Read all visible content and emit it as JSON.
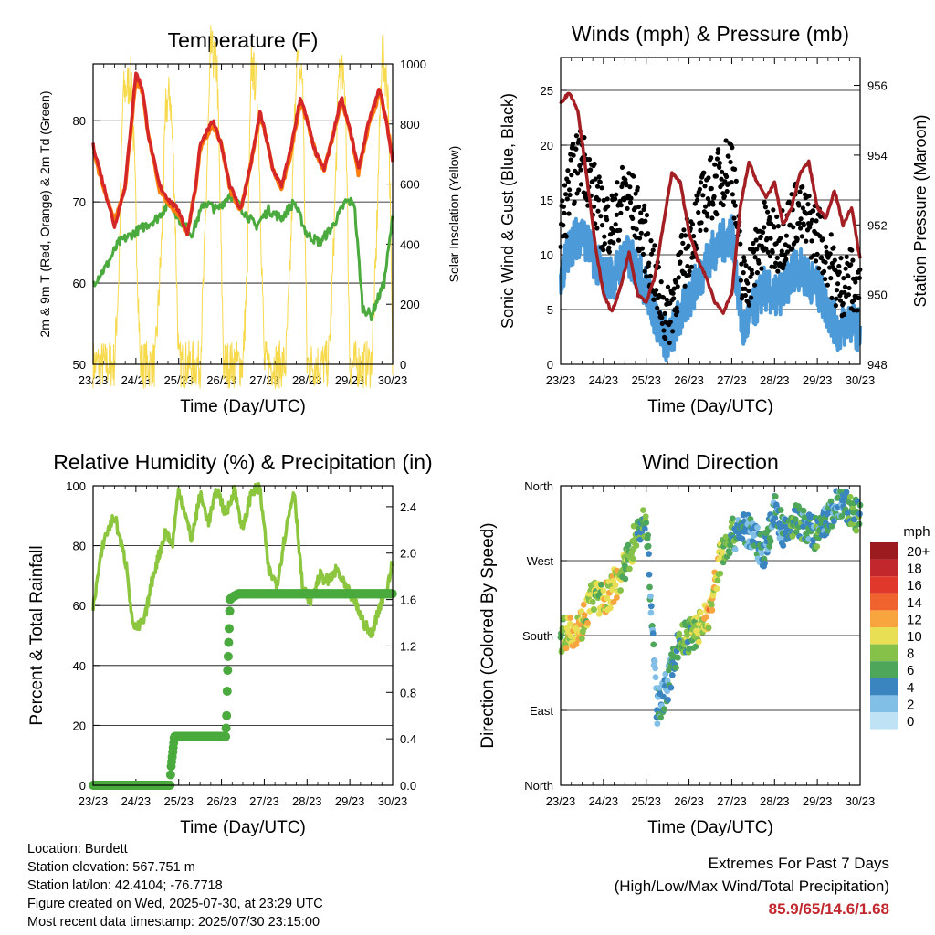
{
  "x_ticks": [
    "23/23",
    "24/23",
    "25/23",
    "26/23",
    "27/23",
    "28/23",
    "29/23",
    "30/23"
  ],
  "charts": {
    "temperature": {
      "title": "Temperature (F)",
      "xlabel": "Time (Day/UTC)",
      "ylabel_left": "2m & 9m T (Red, Orange) & 2m Td (Green)",
      "ylabel_right": "Solar Insolation (Yellow)",
      "left_ticks": [
        "50",
        "60",
        "70",
        "80"
      ],
      "right_ticks": [
        "0",
        "200",
        "400",
        "600",
        "800",
        "1000"
      ]
    },
    "winds": {
      "title": "Winds (mph) & Pressure (mb)",
      "xlabel": "Time (Day/UTC)",
      "ylabel_left": "Sonic Wind & Gust (Blue, Black)",
      "ylabel_right": "Station Pressure (Maroon)",
      "left_ticks": [
        "0",
        "5",
        "10",
        "15",
        "20",
        "25"
      ],
      "right_ticks": [
        "948",
        "950",
        "952",
        "954",
        "956"
      ]
    },
    "humidity": {
      "title": "Relative Humidity (%) & Precipitation (in)",
      "xlabel": "Time (Day/UTC)",
      "ylabel_left": "Percent & Total Rainfall",
      "left_ticks": [
        "0",
        "20",
        "40",
        "60",
        "80",
        "100"
      ],
      "right_ticks": [
        "0.0",
        "0.4",
        "0.8",
        "1.2",
        "1.6",
        "2.0",
        "2.4"
      ]
    },
    "direction": {
      "title": "Wind Direction",
      "xlabel": "Time (Day/UTC)",
      "ylabel_left": "Direction (Colored By Speed)",
      "left_ticks": [
        "North",
        "East",
        "South",
        "West",
        "North"
      ],
      "colorbar_title": "mph",
      "colorbar_labels": [
        "20+",
        "18",
        "16",
        "14",
        "12",
        "10",
        "8",
        "6",
        "4",
        "2",
        "0"
      ],
      "colorbar_colors": [
        "#9b1b1e",
        "#c1272d",
        "#e0392b",
        "#f0632f",
        "#f8a540",
        "#e8df54",
        "#86c24a",
        "#4ea65a",
        "#3a85c0",
        "#82bfe6",
        "#bfe3f5"
      ]
    }
  },
  "info": {
    "location": "Location: Burdett",
    "elevation": "Station elevation: 567.751 m",
    "latlon": "Station lat/lon: 42.4104; -76.7718",
    "created": "Figure created on Wed, 2025-07-30, at 23:29 UTC",
    "recent": "Most recent data timestamp: 2025/07/30 23:15:00"
  },
  "extremes": {
    "line1": "Extremes For Past 7 Days",
    "line2": "(High/Low/Max Wind/Total Precipitation)",
    "values": "85.9/65/14.6/1.68"
  },
  "chart_data": [
    {
      "type": "line",
      "title": "Temperature (F)",
      "xlabel": "Time (Day/UTC)",
      "ylabel": "2m & 9m T (Red, Orange) & 2m Td (Green)",
      "y2label": "Solar Insolation (Yellow)",
      "xlim": [
        0,
        7
      ],
      "ylim": [
        50,
        87
      ],
      "y2lim": [
        0,
        1000
      ],
      "series": [
        {
          "name": "2m T",
          "color": "#d62728",
          "axis": "left",
          "x": [
            0,
            0.25,
            0.5,
            0.75,
            1.0,
            1.15,
            1.3,
            1.55,
            1.8,
            2.0,
            2.2,
            2.4,
            2.5,
            2.8,
            3.0,
            3.2,
            3.45,
            3.7,
            3.9,
            4.0,
            4.2,
            4.4,
            4.6,
            4.85,
            5.0,
            5.2,
            5.4,
            5.6,
            5.8,
            6.0,
            6.2,
            6.45,
            6.7,
            6.85,
            7.0
          ],
          "y": [
            77,
            72,
            67,
            72,
            85.9,
            84,
            78,
            72,
            70,
            69,
            66,
            72,
            77,
            80,
            77,
            72,
            69,
            75,
            81,
            79,
            74,
            72,
            76,
            83,
            80,
            76,
            74,
            78,
            83,
            79,
            74,
            80,
            84,
            80,
            75
          ]
        },
        {
          "name": "9m T",
          "color": "#ff7f0e",
          "axis": "left",
          "x": [
            0,
            0.25,
            0.5,
            0.75,
            1.0,
            1.15,
            1.3,
            1.55,
            1.8,
            2.0,
            2.2,
            2.4,
            2.5,
            2.8,
            3.0,
            3.2,
            3.45,
            3.7,
            3.9,
            4.0,
            4.2,
            4.4,
            4.6,
            4.85,
            5.0,
            5.2,
            5.4,
            5.6,
            5.8,
            6.0,
            6.2,
            6.45,
            6.7,
            6.85,
            7.0
          ],
          "y": [
            76.5,
            71.5,
            67.5,
            72,
            85,
            83.5,
            78,
            71.5,
            69.5,
            68.5,
            66,
            72,
            76.5,
            79.5,
            77,
            71.5,
            69,
            75,
            80.5,
            79,
            74,
            71.5,
            75.5,
            82.5,
            80,
            76,
            74,
            78,
            82.5,
            79,
            73.5,
            79.5,
            83.5,
            80,
            75.5
          ]
        },
        {
          "name": "2m Td",
          "color": "#4aaa3d",
          "axis": "left",
          "x": [
            0,
            0.3,
            0.6,
            0.9,
            1.2,
            1.5,
            1.8,
            2.0,
            2.3,
            2.6,
            2.9,
            3.2,
            3.5,
            3.8,
            4.1,
            4.4,
            4.7,
            5.0,
            5.3,
            5.6,
            5.9,
            6.1,
            6.3,
            6.5,
            6.8,
            7.0
          ],
          "y": [
            60,
            62,
            65,
            66,
            67,
            68,
            70,
            68,
            66,
            70,
            69,
            71,
            69,
            67,
            69,
            68,
            70,
            66,
            65,
            67,
            70,
            70,
            57,
            56,
            60,
            68
          ]
        },
        {
          "name": "Solar Insolation",
          "color": "#f7d94c",
          "axis": "right",
          "x": [
            0,
            0.3,
            0.5,
            0.6,
            0.7,
            0.9,
            1.0,
            1.1,
            1.3,
            1.45,
            1.6,
            1.7,
            1.8,
            1.9,
            2.0,
            2.3,
            2.5,
            2.6,
            2.75,
            2.9,
            3.05,
            3.3,
            3.5,
            3.6,
            3.7,
            3.85,
            4.0,
            4.1,
            4.3,
            4.5,
            4.6,
            4.75,
            4.9,
            5.0,
            5.3,
            5.5,
            5.6,
            5.75,
            5.9,
            6.0,
            6.3,
            6.5,
            6.6,
            6.75,
            6.9,
            7.0
          ],
          "y": [
            0,
            0,
            0,
            300,
            900,
            950,
            500,
            0,
            0,
            0,
            400,
            850,
            900,
            600,
            0,
            0,
            0,
            350,
            1050,
            980,
            0,
            0,
            0,
            300,
            1000,
            900,
            0,
            0,
            0,
            0,
            300,
            1000,
            950,
            0,
            0,
            0,
            300,
            1000,
            900,
            0,
            0,
            0,
            300,
            1050,
            900,
            0
          ]
        }
      ]
    },
    {
      "type": "scatter",
      "title": "Winds (mph) & Pressure (mb)",
      "xlabel": "Time (Day/UTC)",
      "ylabel": "Sonic Wind & Gust (Blue, Black)",
      "y2label": "Station Pressure (Maroon)",
      "xlim": [
        0,
        7
      ],
      "ylim": [
        0,
        28
      ],
      "y2lim": [
        948,
        956.8
      ],
      "series": [
        {
          "name": "Sonic Wind",
          "color": "#4c9ad8",
          "axis": "left",
          "x": [
            0,
            0.25,
            0.5,
            0.75,
            1.0,
            1.25,
            1.5,
            1.75,
            2.0,
            2.25,
            2.5,
            2.75,
            3.0,
            3.25,
            3.5,
            3.75,
            4.0,
            4.25,
            4.5,
            4.75,
            5.0,
            5.25,
            5.5,
            5.75,
            6.0,
            6.25,
            6.5,
            6.75,
            7.0
          ],
          "y": [
            8,
            11,
            12,
            10,
            8,
            8,
            10,
            9,
            7,
            4,
            2,
            4,
            6,
            8,
            10,
            11,
            12,
            3,
            5,
            7,
            6,
            7,
            9,
            8,
            7,
            5,
            3,
            4,
            3
          ]
        },
        {
          "name": "Gust",
          "color": "#000000",
          "axis": "left",
          "x": [
            0,
            0.25,
            0.5,
            0.75,
            1.0,
            1.25,
            1.5,
            1.75,
            2.0,
            2.25,
            2.5,
            2.75,
            3.0,
            3.25,
            3.5,
            3.75,
            4.0,
            4.25,
            4.5,
            4.75,
            5.0,
            5.25,
            5.5,
            5.75,
            6.0,
            6.25,
            6.5,
            6.75,
            7.0
          ],
          "y": [
            12,
            17,
            19,
            16,
            13,
            13,
            16,
            14,
            11,
            7,
            4,
            8,
            11,
            14,
            16,
            17,
            19,
            7,
            9,
            12,
            11,
            12,
            14,
            13,
            12,
            10,
            7,
            8,
            6
          ]
        },
        {
          "name": "Station Pressure",
          "color": "#a31f24",
          "axis": "right",
          "x": [
            0,
            0.2,
            0.4,
            0.6,
            0.8,
            1.0,
            1.2,
            1.4,
            1.6,
            1.8,
            2.0,
            2.2,
            2.4,
            2.6,
            2.8,
            3.0,
            3.2,
            3.4,
            3.6,
            3.8,
            4.0,
            4.2,
            4.4,
            4.6,
            4.8,
            5.0,
            5.2,
            5.4,
            5.6,
            5.8,
            6.0,
            6.2,
            6.4,
            6.6,
            6.8,
            7.0
          ],
          "y": [
            955.5,
            955.8,
            955.3,
            953.5,
            951.5,
            950.0,
            949.5,
            950.2,
            951.2,
            950.0,
            949.8,
            950.5,
            952.0,
            953.5,
            953.2,
            951.8,
            951.0,
            950.5,
            949.8,
            949.5,
            950.0,
            952.5,
            953.8,
            953.2,
            952.8,
            953.2,
            952.0,
            952.5,
            953.5,
            953.8,
            952.5,
            952.2,
            953.0,
            952.0,
            952.5,
            951.0
          ]
        }
      ]
    },
    {
      "type": "line",
      "title": "Relative Humidity (%) & Precipitation (in)",
      "xlabel": "Time (Day/UTC)",
      "ylabel": "Percent & Total Rainfall",
      "xlim": [
        0,
        7
      ],
      "ylim": [
        0,
        100
      ],
      "y2lim": [
        0,
        2.58
      ],
      "series": [
        {
          "name": "Relative Humidity",
          "color": "#8cc63f",
          "axis": "left",
          "x": [
            0,
            0.25,
            0.5,
            0.8,
            0.9,
            1.0,
            1.2,
            1.4,
            1.7,
            1.85,
            2.0,
            2.3,
            2.5,
            2.7,
            2.9,
            3.1,
            3.3,
            3.5,
            3.7,
            3.9,
            4.1,
            4.3,
            4.5,
            4.7,
            4.9,
            5.1,
            5.3,
            5.5,
            5.7,
            5.9,
            6.1,
            6.3,
            6.5,
            6.7,
            6.9,
            7.0
          ],
          "y": [
            60,
            82,
            90,
            72,
            56,
            52,
            55,
            70,
            85,
            80,
            99,
            82,
            97,
            88,
            99,
            90,
            99,
            85,
            98,
            99,
            72,
            67,
            85,
            99,
            65,
            62,
            70,
            68,
            72,
            66,
            62,
            55,
            50,
            60,
            67,
            75
          ]
        },
        {
          "name": "Total Precipitation",
          "color": "#4aaa3d",
          "axis": "right",
          "x": [
            0,
            1.8,
            1.82,
            1.9,
            3.1,
            3.12,
            3.14,
            3.16,
            3.18,
            3.2,
            3.25,
            3.4,
            7.0
          ],
          "y": [
            0,
            0,
            0.15,
            0.42,
            0.42,
            0.6,
            0.95,
            1.15,
            1.35,
            1.6,
            1.62,
            1.65,
            1.65
          ]
        }
      ]
    },
    {
      "type": "scatter",
      "title": "Wind Direction",
      "xlabel": "Time (Day/UTC)",
      "ylabel": "Direction (Colored By Speed)",
      "xlim": [
        0,
        7
      ],
      "ylim": [
        0,
        360
      ],
      "series": [
        {
          "name": "Direction",
          "x": [
            0,
            0.25,
            0.5,
            0.75,
            1.0,
            1.25,
            1.5,
            1.75,
            2.0,
            2.25,
            2.5,
            2.75,
            3.0,
            3.25,
            3.5,
            3.75,
            4.0,
            4.25,
            4.5,
            4.75,
            5.0,
            5.25,
            5.5,
            5.75,
            6.0,
            6.25,
            6.5,
            6.75,
            7.0
          ],
          "y": [
            180,
            185,
            195,
            230,
            220,
            240,
            260,
            300,
            320,
            90,
            120,
            170,
            180,
            190,
            210,
            280,
            300,
            310,
            300,
            280,
            330,
            300,
            320,
            310,
            300,
            320,
            340,
            330,
            320
          ],
          "speed": [
            6,
            12,
            10,
            8,
            9,
            10,
            8,
            7,
            5,
            3,
            4,
            6,
            7,
            9,
            11,
            9,
            6,
            4,
            3,
            5,
            4,
            5,
            6,
            4,
            5,
            4,
            3,
            6,
            5
          ]
        }
      ]
    }
  ]
}
